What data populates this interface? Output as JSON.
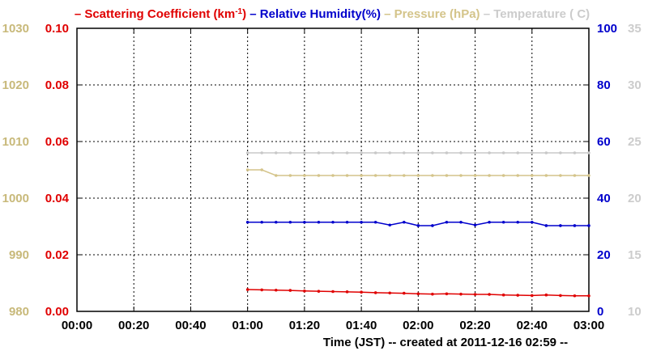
{
  "chart_data": {
    "type": "line",
    "legend": [
      {
        "prefix": "– ",
        "label": "Scattering Coefficient (km",
        "sup": "-1",
        "suffix": ")",
        "color": "#e00000"
      },
      {
        "prefix": " – ",
        "label": "Relative Humidity(%)",
        "sup": "",
        "suffix": "",
        "color": "#0000cc"
      },
      {
        "prefix": " – ",
        "label": "Pressure (hPa)",
        "sup": "",
        "suffix": "",
        "color": "#d4c48a"
      },
      {
        "prefix": " – ",
        "label": "Temperature ( C)",
        "sup": "",
        "suffix": "",
        "color": "#cccccc"
      }
    ],
    "xlabel": "Time (JST)  -- created at 2011-12-16 02:59 --",
    "x_ticks": [
      "00:00",
      "00:20",
      "00:40",
      "01:00",
      "01:20",
      "01:40",
      "02:00",
      "02:20",
      "02:40",
      "03:00"
    ],
    "x_range_minutes": [
      0,
      180
    ],
    "axes": {
      "pressure": {
        "ticks": [
          "980",
          "990",
          "1000",
          "1010",
          "1020",
          "1030"
        ],
        "range": [
          980,
          1030
        ],
        "color": "#c8b97a"
      },
      "scattering": {
        "ticks": [
          "0.00",
          "0.02",
          "0.04",
          "0.06",
          "0.08",
          "0.10"
        ],
        "range": [
          0,
          0.1
        ],
        "color": "#e00000"
      },
      "humidity": {
        "ticks": [
          "0",
          "20",
          "40",
          "60",
          "80",
          "100"
        ],
        "range": [
          0,
          100
        ],
        "color": "#0000cc"
      },
      "temperature": {
        "ticks": [
          "10",
          "15",
          "20",
          "25",
          "30",
          "35"
        ],
        "range": [
          10,
          35
        ],
        "color": "#cccccc"
      }
    },
    "grid": true,
    "series": [
      {
        "name": "Scattering Coefficient",
        "axis": "scattering",
        "color": "#e00000",
        "x": [
          60,
          65,
          70,
          75,
          80,
          85,
          90,
          95,
          100,
          105,
          110,
          115,
          120,
          125,
          130,
          135,
          140,
          145,
          150,
          155,
          160,
          165,
          170,
          175,
          180
        ],
        "values": [
          0.0077,
          0.0076,
          0.0075,
          0.0074,
          0.0072,
          0.0071,
          0.007,
          0.0069,
          0.0068,
          0.0066,
          0.0065,
          0.0064,
          0.0062,
          0.0061,
          0.0062,
          0.0061,
          0.006,
          0.006,
          0.0058,
          0.0057,
          0.0056,
          0.0058,
          0.0056,
          0.0055,
          0.0055
        ]
      },
      {
        "name": "Relative Humidity",
        "axis": "humidity",
        "color": "#0000cc",
        "x": [
          60,
          65,
          70,
          75,
          80,
          85,
          90,
          95,
          100,
          105,
          110,
          115,
          120,
          125,
          130,
          135,
          140,
          145,
          150,
          155,
          160,
          165,
          170,
          175,
          180
        ],
        "values": [
          31.5,
          31.5,
          31.5,
          31.5,
          31.5,
          31.5,
          31.5,
          31.5,
          31.5,
          31.5,
          30.5,
          31.5,
          30.3,
          30.3,
          31.5,
          31.5,
          30.5,
          31.5,
          31.5,
          31.5,
          31.5,
          30.3,
          30.3,
          30.3,
          30.3
        ]
      },
      {
        "name": "Pressure",
        "axis": "pressure",
        "color": "#d4c48a",
        "x": [
          60,
          65,
          70,
          75,
          80,
          85,
          90,
          95,
          100,
          105,
          110,
          115,
          120,
          125,
          130,
          135,
          140,
          145,
          150,
          155,
          160,
          165,
          170,
          175,
          180
        ],
        "values": [
          1005,
          1005,
          1004,
          1004,
          1004,
          1004,
          1004,
          1004,
          1004,
          1004,
          1004,
          1004,
          1004,
          1004,
          1004,
          1004,
          1004,
          1004,
          1004,
          1004,
          1004,
          1004,
          1004,
          1004,
          1004
        ]
      },
      {
        "name": "Temperature",
        "axis": "temperature",
        "color": "#c8c8c8",
        "x": [
          60,
          65,
          70,
          75,
          80,
          85,
          90,
          95,
          100,
          105,
          110,
          115,
          120,
          125,
          130,
          135,
          140,
          145,
          150,
          155,
          160,
          165,
          170,
          175,
          180
        ],
        "values": [
          24.0,
          24.0,
          24.0,
          24.0,
          24.0,
          24.0,
          24.0,
          24.0,
          24.0,
          24.0,
          24.0,
          24.0,
          24.0,
          24.0,
          24.0,
          24.0,
          24.0,
          24.0,
          24.0,
          24.0,
          24.0,
          24.0,
          24.0,
          24.0,
          24.0
        ]
      }
    ]
  }
}
